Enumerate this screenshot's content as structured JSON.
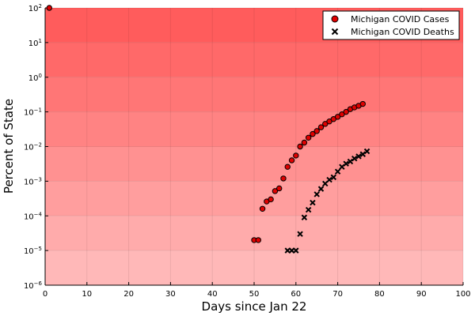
{
  "chart_data": {
    "type": "scatter",
    "title": "",
    "xlabel": "Days since Jan 22",
    "ylabel": "Percent of State",
    "xlim": [
      0,
      100
    ],
    "ylim": [
      1e-06,
      100
    ],
    "yscale": "log",
    "x_ticks": [
      0,
      10,
      20,
      30,
      40,
      50,
      60,
      70,
      80,
      90,
      100
    ],
    "y_tick_exponents": [
      -6,
      -5,
      -4,
      -3,
      -2,
      -1,
      0,
      1,
      2
    ],
    "y_tick_base": "10",
    "grid": true,
    "legend_position": "top-right",
    "background": "red gradient bands, one per decade, darker toward the top",
    "series": [
      {
        "name": "Michigan COVID Cases",
        "marker": "circle",
        "color": "#e00000",
        "points": [
          [
            1,
            100
          ],
          [
            50,
            2e-05
          ],
          [
            51,
            2e-05
          ],
          [
            52,
            0.00016
          ],
          [
            53,
            0.00026
          ],
          [
            54,
            0.0003
          ],
          [
            55,
            0.00052
          ],
          [
            56,
            0.00062
          ],
          [
            57,
            0.0012
          ],
          [
            58,
            0.0026
          ],
          [
            59,
            0.004
          ],
          [
            60,
            0.0055
          ],
          [
            61,
            0.01
          ],
          [
            62,
            0.013
          ],
          [
            63,
            0.018
          ],
          [
            64,
            0.023
          ],
          [
            65,
            0.028
          ],
          [
            66,
            0.036
          ],
          [
            67,
            0.045
          ],
          [
            68,
            0.053
          ],
          [
            69,
            0.062
          ],
          [
            70,
            0.072
          ],
          [
            71,
            0.085
          ],
          [
            72,
            0.1
          ],
          [
            73,
            0.12
          ],
          [
            74,
            0.135
          ],
          [
            75,
            0.15
          ],
          [
            76,
            0.17
          ]
        ]
      },
      {
        "name": "Michigan COVID Deaths",
        "marker": "x",
        "color": "#000000",
        "points": [
          [
            58,
            1e-05
          ],
          [
            59,
            1e-05
          ],
          [
            60,
            1e-05
          ],
          [
            61,
            3e-05
          ],
          [
            62,
            9e-05
          ],
          [
            63,
            0.00015
          ],
          [
            64,
            0.00024
          ],
          [
            65,
            0.00042
          ],
          [
            66,
            0.0006
          ],
          [
            67,
            0.00085
          ],
          [
            68,
            0.0011
          ],
          [
            69,
            0.0013
          ],
          [
            70,
            0.0019
          ],
          [
            71,
            0.0026
          ],
          [
            72,
            0.0032
          ],
          [
            73,
            0.0037
          ],
          [
            74,
            0.0045
          ],
          [
            75,
            0.0052
          ],
          [
            76,
            0.006
          ],
          [
            77,
            0.0073
          ]
        ]
      }
    ]
  }
}
